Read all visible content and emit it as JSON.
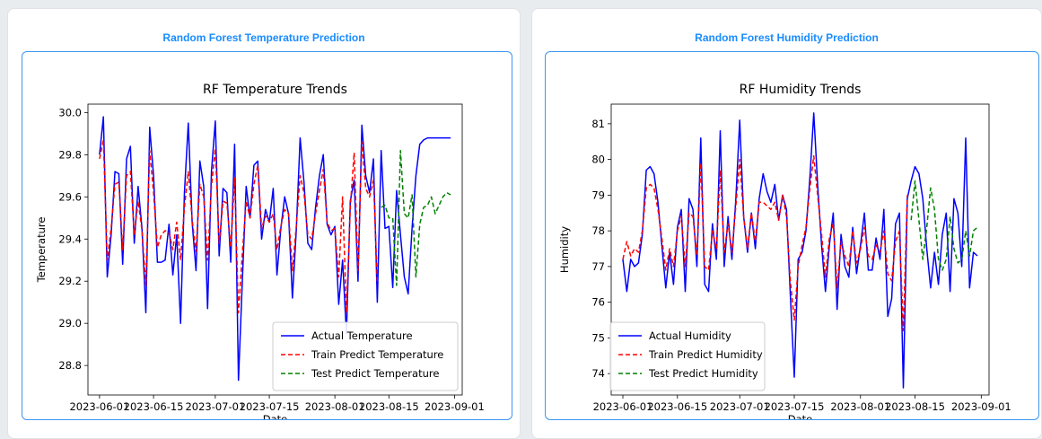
{
  "cards": [
    {
      "heading": "Random Forest Temperature Prediction"
    },
    {
      "heading": "Random Forest Humidity Prediction"
    }
  ],
  "chart_data": [
    {
      "type": "line",
      "title": "RF Temperature Trends",
      "xlabel": "Date",
      "ylabel": "Temperature",
      "x_ticks": [
        "2023-06-01",
        "2023-06-15",
        "2023-07-01",
        "2023-07-15",
        "2023-08-01",
        "2023-08-15",
        "2023-09-01"
      ],
      "y_ticks": [
        28.8,
        29.0,
        29.2,
        29.4,
        29.6,
        29.8,
        30.0
      ],
      "xlim": [
        "2023-05-29",
        "2023-09-03"
      ],
      "ylim": [
        28.66,
        30.04
      ],
      "legend_position": "lower right",
      "series": [
        {
          "name": "Actual Temperature",
          "color": "#0000ff",
          "style": "solid",
          "x": [
            "2023-06-01",
            "2023-06-02",
            "2023-06-03",
            "2023-06-04",
            "2023-06-05",
            "2023-06-06",
            "2023-06-07",
            "2023-06-08",
            "2023-06-09",
            "2023-06-10",
            "2023-06-11",
            "2023-06-12",
            "2023-06-13",
            "2023-06-14",
            "2023-06-15",
            "2023-06-16",
            "2023-06-17",
            "2023-06-18",
            "2023-06-19",
            "2023-06-20",
            "2023-06-21",
            "2023-06-22",
            "2023-06-23",
            "2023-06-24",
            "2023-06-25",
            "2023-06-26",
            "2023-06-27",
            "2023-06-28",
            "2023-06-29",
            "2023-06-30",
            "2023-07-01",
            "2023-07-02",
            "2023-07-03",
            "2023-07-04",
            "2023-07-05",
            "2023-07-06",
            "2023-07-07",
            "2023-07-08",
            "2023-07-09",
            "2023-07-10",
            "2023-07-11",
            "2023-07-12",
            "2023-07-13",
            "2023-07-14",
            "2023-07-15",
            "2023-07-16",
            "2023-07-17",
            "2023-07-18",
            "2023-07-19",
            "2023-07-20",
            "2023-07-21",
            "2023-07-22",
            "2023-07-23",
            "2023-07-24",
            "2023-07-25",
            "2023-07-26",
            "2023-07-27",
            "2023-07-28",
            "2023-07-29",
            "2023-07-30",
            "2023-07-31",
            "2023-08-01",
            "2023-08-02",
            "2023-08-03",
            "2023-08-04",
            "2023-08-05",
            "2023-08-06",
            "2023-08-07",
            "2023-08-08",
            "2023-08-09",
            "2023-08-10",
            "2023-08-11",
            "2023-08-12",
            "2023-08-13",
            "2023-08-14",
            "2023-08-15",
            "2023-08-16",
            "2023-08-17",
            "2023-08-18",
            "2023-08-19",
            "2023-08-20",
            "2023-08-21",
            "2023-08-22",
            "2023-08-23",
            "2023-08-24",
            "2023-08-25",
            "2023-08-26",
            "2023-08-27",
            "2023-08-28",
            "2023-08-29",
            "2023-08-30",
            "2023-08-31"
          ],
          "y": [
            29.8,
            29.98,
            29.22,
            29.42,
            29.72,
            29.71,
            29.28,
            29.78,
            29.84,
            29.38,
            29.65,
            29.45,
            29.05,
            29.93,
            29.7,
            29.29,
            29.29,
            29.3,
            29.47,
            29.23,
            29.42,
            29.0,
            29.62,
            29.95,
            29.48,
            29.25,
            29.77,
            29.65,
            29.07,
            29.72,
            29.96,
            29.32,
            29.64,
            29.62,
            29.29,
            29.85,
            28.73,
            29.2,
            29.65,
            29.5,
            29.75,
            29.77,
            29.4,
            29.54,
            29.48,
            29.64,
            29.23,
            29.45,
            29.6,
            29.52,
            29.12,
            29.44,
            29.88,
            29.67,
            29.38,
            29.35,
            29.55,
            29.7,
            29.8,
            29.47,
            29.42,
            29.46,
            29.09,
            29.3,
            28.95,
            29.58,
            29.68,
            29.2,
            29.94,
            29.7,
            29.62,
            29.78,
            29.1,
            29.82,
            29.45,
            29.46,
            29.17,
            29.63,
            29.42,
            29.22,
            29.14,
            29.45,
            29.7,
            29.85,
            29.87,
            29.88,
            29.88,
            29.88,
            29.88,
            29.88,
            29.88,
            29.88
          ]
        },
        {
          "name": "Train Predict Temperature",
          "color": "#ff0000",
          "style": "dashed",
          "x": [
            "2023-06-01",
            "2023-06-02",
            "2023-06-03",
            "2023-06-04",
            "2023-06-05",
            "2023-06-06",
            "2023-06-07",
            "2023-06-08",
            "2023-06-09",
            "2023-06-10",
            "2023-06-11",
            "2023-06-12",
            "2023-06-13",
            "2023-06-14",
            "2023-06-15",
            "2023-06-16",
            "2023-06-17",
            "2023-06-18",
            "2023-06-19",
            "2023-06-20",
            "2023-06-21",
            "2023-06-22",
            "2023-06-23",
            "2023-06-24",
            "2023-06-25",
            "2023-06-26",
            "2023-06-27",
            "2023-06-28",
            "2023-06-29",
            "2023-06-30",
            "2023-07-01",
            "2023-07-02",
            "2023-07-03",
            "2023-07-04",
            "2023-07-05",
            "2023-07-06",
            "2023-07-07",
            "2023-07-08",
            "2023-07-09",
            "2023-07-10",
            "2023-07-11",
            "2023-07-12",
            "2023-07-13",
            "2023-07-14",
            "2023-07-15",
            "2023-07-16",
            "2023-07-17",
            "2023-07-18",
            "2023-07-19",
            "2023-07-20",
            "2023-07-21",
            "2023-07-22",
            "2023-07-23",
            "2023-07-24",
            "2023-07-25",
            "2023-07-26",
            "2023-07-27",
            "2023-07-28",
            "2023-07-29",
            "2023-07-30",
            "2023-07-31",
            "2023-08-01",
            "2023-08-02",
            "2023-08-03",
            "2023-08-04",
            "2023-08-05",
            "2023-08-06",
            "2023-08-07",
            "2023-08-08",
            "2023-08-09",
            "2023-08-10",
            "2023-08-11",
            "2023-08-12"
          ],
          "y": [
            29.78,
            29.87,
            29.3,
            29.45,
            29.66,
            29.67,
            29.35,
            29.7,
            29.72,
            29.42,
            29.58,
            29.44,
            29.18,
            29.82,
            29.62,
            29.36,
            29.42,
            29.44,
            29.43,
            29.35,
            29.48,
            29.3,
            29.55,
            29.72,
            29.49,
            29.34,
            29.66,
            29.6,
            29.3,
            29.65,
            29.83,
            29.38,
            29.58,
            29.57,
            29.36,
            29.69,
            29.05,
            29.33,
            29.58,
            29.5,
            29.66,
            29.75,
            29.45,
            29.51,
            29.48,
            29.52,
            29.35,
            29.46,
            29.54,
            29.52,
            29.25,
            29.46,
            29.7,
            29.62,
            29.42,
            29.4,
            29.52,
            29.63,
            29.73,
            29.48,
            29.44,
            29.45,
            29.22,
            29.6,
            29.05,
            29.55,
            29.81,
            29.25,
            29.86,
            29.64,
            29.6,
            29.68,
            29.2
          ]
        },
        {
          "name": "Test Predict Temperature",
          "color": "#008000",
          "style": "dashed",
          "x": [
            "2023-08-13",
            "2023-08-14",
            "2023-08-15",
            "2023-08-16",
            "2023-08-17",
            "2023-08-18",
            "2023-08-19",
            "2023-08-20",
            "2023-08-21",
            "2023-08-22",
            "2023-08-23",
            "2023-08-24",
            "2023-08-25",
            "2023-08-26",
            "2023-08-27",
            "2023-08-28",
            "2023-08-29",
            "2023-08-30",
            "2023-08-31"
          ],
          "y": [
            29.55,
            29.56,
            29.5,
            29.5,
            29.18,
            29.82,
            29.52,
            29.5,
            29.61,
            29.22,
            29.47,
            29.55,
            29.56,
            29.6,
            29.52,
            29.56,
            29.6,
            29.62,
            29.61
          ]
        }
      ]
    },
    {
      "type": "line",
      "title": "RF Humidity Trends",
      "xlabel": "Date",
      "ylabel": "Humidity",
      "x_ticks": [
        "2023-06-01",
        "2023-06-15",
        "2023-07-01",
        "2023-07-15",
        "2023-08-01",
        "2023-08-15",
        "2023-09-01"
      ],
      "y_ticks": [
        74,
        75,
        76,
        77,
        78,
        79,
        80,
        81
      ],
      "xlim": [
        "2023-05-29",
        "2023-09-03"
      ],
      "ylim": [
        73.4,
        81.55
      ],
      "legend_position": "lower left",
      "series": [
        {
          "name": "Actual Humidity",
          "color": "#0000ff",
          "style": "solid",
          "x": [
            "2023-06-01",
            "2023-06-02",
            "2023-06-03",
            "2023-06-04",
            "2023-06-05",
            "2023-06-06",
            "2023-06-07",
            "2023-06-08",
            "2023-06-09",
            "2023-06-10",
            "2023-06-11",
            "2023-06-12",
            "2023-06-13",
            "2023-06-14",
            "2023-06-15",
            "2023-06-16",
            "2023-06-17",
            "2023-06-18",
            "2023-06-19",
            "2023-06-20",
            "2023-06-21",
            "2023-06-22",
            "2023-06-23",
            "2023-06-24",
            "2023-06-25",
            "2023-06-26",
            "2023-06-27",
            "2023-06-28",
            "2023-06-29",
            "2023-06-30",
            "2023-07-01",
            "2023-07-02",
            "2023-07-03",
            "2023-07-04",
            "2023-07-05",
            "2023-07-06",
            "2023-07-07",
            "2023-07-08",
            "2023-07-09",
            "2023-07-10",
            "2023-07-11",
            "2023-07-12",
            "2023-07-13",
            "2023-07-14",
            "2023-07-15",
            "2023-07-16",
            "2023-07-17",
            "2023-07-18",
            "2023-07-19",
            "2023-07-20",
            "2023-07-21",
            "2023-07-22",
            "2023-07-23",
            "2023-07-24",
            "2023-07-25",
            "2023-07-26",
            "2023-07-27",
            "2023-07-28",
            "2023-07-29",
            "2023-07-30",
            "2023-07-31",
            "2023-08-01",
            "2023-08-02",
            "2023-08-03",
            "2023-08-04",
            "2023-08-05",
            "2023-08-06",
            "2023-08-07",
            "2023-08-08",
            "2023-08-09",
            "2023-08-10",
            "2023-08-11",
            "2023-08-12",
            "2023-08-13",
            "2023-08-14",
            "2023-08-15",
            "2023-08-16",
            "2023-08-17",
            "2023-08-18",
            "2023-08-19",
            "2023-08-20",
            "2023-08-21",
            "2023-08-22",
            "2023-08-23",
            "2023-08-24",
            "2023-08-25",
            "2023-08-26",
            "2023-08-27",
            "2023-08-28",
            "2023-08-29",
            "2023-08-30",
            "2023-08-31"
          ],
          "y": [
            77.2,
            76.3,
            77.2,
            77.0,
            77.1,
            77.9,
            79.7,
            79.8,
            79.6,
            78.8,
            77.6,
            76.4,
            77.4,
            76.5,
            78.1,
            78.6,
            76.3,
            78.9,
            78.6,
            77.0,
            80.6,
            76.5,
            76.3,
            78.2,
            77.2,
            80.8,
            77.0,
            78.4,
            77.2,
            78.9,
            81.1,
            78.4,
            77.4,
            78.5,
            77.5,
            78.9,
            79.6,
            79.1,
            78.8,
            79.3,
            78.3,
            79.0,
            78.6,
            76.2,
            73.9,
            77.2,
            77.4,
            78.0,
            79.5,
            81.3,
            79.3,
            77.6,
            76.3,
            77.6,
            78.5,
            75.8,
            77.9,
            77.0,
            76.7,
            78.1,
            76.8,
            77.6,
            78.5,
            76.9,
            76.9,
            77.8,
            77.2,
            78.6,
            75.6,
            76.1,
            78.2,
            78.5,
            73.6,
            78.9,
            79.4,
            79.8,
            79.6,
            78.9,
            77.5,
            76.4,
            77.4,
            76.5,
            77.9,
            78.5,
            76.3,
            78.9,
            78.5,
            77.0,
            80.6,
            76.4,
            77.4,
            77.3
          ]
        },
        {
          "name": "Train Predict Humidity",
          "color": "#ff0000",
          "style": "dashed",
          "x": [
            "2023-06-01",
            "2023-06-02",
            "2023-06-03",
            "2023-06-04",
            "2023-06-05",
            "2023-06-06",
            "2023-06-07",
            "2023-06-08",
            "2023-06-09",
            "2023-06-10",
            "2023-06-11",
            "2023-06-12",
            "2023-06-13",
            "2023-06-14",
            "2023-06-15",
            "2023-06-16",
            "2023-06-17",
            "2023-06-18",
            "2023-06-19",
            "2023-06-20",
            "2023-06-21",
            "2023-06-22",
            "2023-06-23",
            "2023-06-24",
            "2023-06-25",
            "2023-06-26",
            "2023-06-27",
            "2023-06-28",
            "2023-06-29",
            "2023-06-30",
            "2023-07-01",
            "2023-07-02",
            "2023-07-03",
            "2023-07-04",
            "2023-07-05",
            "2023-07-06",
            "2023-07-07",
            "2023-07-08",
            "2023-07-09",
            "2023-07-10",
            "2023-07-11",
            "2023-07-12",
            "2023-07-13",
            "2023-07-14",
            "2023-07-15",
            "2023-07-16",
            "2023-07-17",
            "2023-07-18",
            "2023-07-19",
            "2023-07-20",
            "2023-07-21",
            "2023-07-22",
            "2023-07-23",
            "2023-07-24",
            "2023-07-25",
            "2023-07-26",
            "2023-07-27",
            "2023-07-28",
            "2023-07-29",
            "2023-07-30",
            "2023-07-31",
            "2023-08-01",
            "2023-08-02",
            "2023-08-03",
            "2023-08-04",
            "2023-08-05",
            "2023-08-06",
            "2023-08-07",
            "2023-08-08",
            "2023-08-09",
            "2023-08-10",
            "2023-08-11",
            "2023-08-12",
            "2023-08-13"
          ],
          "y": [
            77.2,
            77.7,
            77.3,
            77.5,
            77.4,
            78.0,
            79.2,
            79.3,
            79.2,
            78.6,
            77.8,
            76.9,
            77.5,
            77.0,
            78.0,
            78.4,
            77.0,
            78.5,
            78.4,
            77.3,
            79.9,
            77.0,
            76.9,
            78.0,
            77.5,
            79.7,
            77.4,
            78.2,
            77.4,
            78.7,
            80.0,
            78.4,
            77.5,
            78.5,
            77.7,
            78.8,
            78.8,
            78.7,
            78.6,
            78.8,
            78.3,
            79.0,
            78.4,
            76.6,
            75.5,
            77.0,
            77.6,
            78.1,
            79.2,
            80.1,
            79.0,
            77.9,
            76.7,
            77.8,
            78.2,
            76.4,
            77.7,
            77.3,
            77.0,
            78.0,
            77.1,
            77.5,
            78.1,
            77.3,
            77.2,
            77.6,
            77.4,
            78.0,
            76.8,
            76.6,
            77.7,
            78.0,
            75.2,
            79.0
          ]
        },
        {
          "name": "Test Predict Humidity",
          "color": "#008000",
          "style": "dashed",
          "x": [
            "2023-08-14",
            "2023-08-15",
            "2023-08-16",
            "2023-08-17",
            "2023-08-18",
            "2023-08-19",
            "2023-08-20",
            "2023-08-21",
            "2023-08-22",
            "2023-08-23",
            "2023-08-24",
            "2023-08-25",
            "2023-08-26",
            "2023-08-27",
            "2023-08-28",
            "2023-08-29",
            "2023-08-30",
            "2023-08-31"
          ],
          "y": [
            78.3,
            79.4,
            78.3,
            77.2,
            78.1,
            79.2,
            78.6,
            77.2,
            76.9,
            77.2,
            78.4,
            77.5,
            77.1,
            77.2,
            78.0,
            77.3,
            78.0,
            78.1
          ]
        }
      ]
    }
  ]
}
